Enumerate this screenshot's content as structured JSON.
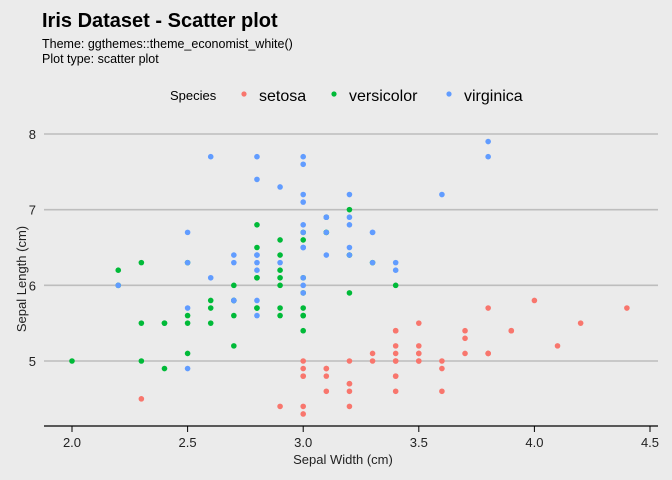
{
  "title": "Iris Dataset - Scatter plot",
  "subtitle_theme": "Theme: ggthemes::theme_economist_white()",
  "subtitle_type": "Plot type: scatter plot",
  "chart_data": {
    "type": "scatter",
    "xlabel": "Sepal Width (cm)",
    "ylabel": "Sepal Length (cm)",
    "xlim": [
      1.9,
      4.5
    ],
    "ylim": [
      4.2,
      8.1
    ],
    "x_ticks": [
      2.0,
      2.5,
      3.0,
      3.5,
      4.0,
      4.5
    ],
    "x_tick_labels": [
      "2.0",
      "2.5",
      "3.0",
      "3.5",
      "4.0",
      "4.5"
    ],
    "y_ticks": [
      5,
      6,
      7,
      8
    ],
    "y_tick_labels": [
      "5",
      "6",
      "7",
      "8"
    ],
    "grid": "horizontal",
    "legend_title": "Species",
    "legend_position": "top",
    "series": [
      {
        "name": "setosa",
        "color": "#F8766D",
        "points": [
          [
            3.5,
            5.1
          ],
          [
            3.0,
            4.9
          ],
          [
            3.2,
            4.7
          ],
          [
            3.1,
            4.6
          ],
          [
            3.6,
            5.0
          ],
          [
            3.9,
            5.4
          ],
          [
            3.4,
            4.6
          ],
          [
            3.4,
            5.0
          ],
          [
            2.9,
            4.4
          ],
          [
            3.1,
            4.9
          ],
          [
            3.7,
            5.4
          ],
          [
            3.4,
            4.8
          ],
          [
            3.0,
            4.8
          ],
          [
            3.0,
            4.3
          ],
          [
            4.0,
            5.8
          ],
          [
            4.4,
            5.7
          ],
          [
            3.9,
            5.4
          ],
          [
            3.5,
            5.1
          ],
          [
            3.8,
            5.7
          ],
          [
            3.8,
            5.1
          ],
          [
            3.4,
            5.4
          ],
          [
            3.7,
            5.1
          ],
          [
            3.6,
            4.6
          ],
          [
            3.3,
            5.1
          ],
          [
            3.4,
            4.8
          ],
          [
            3.0,
            5.0
          ],
          [
            3.4,
            5.0
          ],
          [
            3.5,
            5.2
          ],
          [
            3.4,
            5.2
          ],
          [
            3.2,
            4.7
          ],
          [
            3.1,
            4.8
          ],
          [
            3.4,
            5.4
          ],
          [
            4.1,
            5.2
          ],
          [
            4.2,
            5.5
          ],
          [
            3.1,
            4.9
          ],
          [
            3.2,
            5.0
          ],
          [
            3.5,
            5.5
          ],
          [
            3.6,
            4.9
          ],
          [
            3.0,
            4.4
          ],
          [
            3.4,
            5.1
          ],
          [
            3.5,
            5.0
          ],
          [
            2.3,
            4.5
          ],
          [
            3.2,
            4.4
          ],
          [
            3.5,
            5.0
          ],
          [
            3.8,
            5.1
          ],
          [
            3.0,
            4.8
          ],
          [
            3.8,
            5.1
          ],
          [
            3.2,
            4.6
          ],
          [
            3.7,
            5.3
          ],
          [
            3.3,
            5.0
          ]
        ]
      },
      {
        "name": "versicolor",
        "color": "#00BA38",
        "points": [
          [
            3.2,
            7.0
          ],
          [
            3.2,
            6.4
          ],
          [
            3.1,
            6.9
          ],
          [
            2.3,
            5.5
          ],
          [
            2.8,
            6.5
          ],
          [
            2.8,
            5.7
          ],
          [
            3.3,
            6.3
          ],
          [
            2.4,
            4.9
          ],
          [
            2.9,
            6.6
          ],
          [
            2.7,
            5.2
          ],
          [
            2.0,
            5.0
          ],
          [
            3.0,
            5.9
          ],
          [
            2.2,
            6.0
          ],
          [
            2.9,
            6.1
          ],
          [
            2.9,
            5.6
          ],
          [
            3.1,
            6.7
          ],
          [
            3.0,
            5.6
          ],
          [
            2.7,
            5.8
          ],
          [
            2.2,
            6.2
          ],
          [
            2.5,
            5.6
          ],
          [
            3.2,
            5.9
          ],
          [
            2.8,
            6.1
          ],
          [
            2.5,
            6.3
          ],
          [
            2.8,
            6.1
          ],
          [
            2.9,
            6.4
          ],
          [
            3.0,
            6.6
          ],
          [
            2.8,
            6.8
          ],
          [
            3.0,
            6.7
          ],
          [
            2.9,
            6.0
          ],
          [
            2.6,
            5.7
          ],
          [
            2.4,
            5.5
          ],
          [
            2.4,
            5.5
          ],
          [
            2.7,
            5.8
          ],
          [
            2.7,
            6.0
          ],
          [
            3.0,
            5.4
          ],
          [
            3.4,
            6.0
          ],
          [
            3.1,
            6.7
          ],
          [
            2.3,
            6.3
          ],
          [
            3.0,
            5.6
          ],
          [
            2.5,
            5.5
          ],
          [
            2.6,
            5.5
          ],
          [
            3.0,
            6.1
          ],
          [
            2.6,
            5.8
          ],
          [
            2.3,
            5.0
          ],
          [
            2.7,
            5.6
          ],
          [
            3.0,
            5.7
          ],
          [
            2.9,
            5.7
          ],
          [
            2.9,
            6.2
          ],
          [
            2.5,
            5.1
          ],
          [
            2.8,
            5.7
          ]
        ]
      },
      {
        "name": "virginica",
        "color": "#619CFF",
        "points": [
          [
            3.3,
            6.3
          ],
          [
            2.7,
            5.8
          ],
          [
            3.0,
            7.1
          ],
          [
            2.9,
            6.3
          ],
          [
            3.0,
            6.5
          ],
          [
            3.0,
            7.6
          ],
          [
            2.5,
            4.9
          ],
          [
            2.9,
            7.3
          ],
          [
            2.5,
            6.7
          ],
          [
            3.6,
            7.2
          ],
          [
            3.2,
            6.5
          ],
          [
            2.7,
            6.4
          ],
          [
            3.0,
            6.8
          ],
          [
            2.5,
            5.7
          ],
          [
            2.8,
            5.8
          ],
          [
            3.2,
            6.4
          ],
          [
            3.0,
            6.5
          ],
          [
            3.8,
            7.7
          ],
          [
            2.6,
            7.7
          ],
          [
            2.2,
            6.0
          ],
          [
            3.2,
            6.9
          ],
          [
            2.8,
            5.6
          ],
          [
            2.8,
            7.7
          ],
          [
            2.7,
            6.3
          ],
          [
            3.3,
            6.7
          ],
          [
            3.2,
            7.2
          ],
          [
            2.8,
            6.2
          ],
          [
            3.0,
            6.1
          ],
          [
            2.8,
            6.4
          ],
          [
            3.0,
            7.2
          ],
          [
            2.8,
            7.4
          ],
          [
            3.8,
            7.9
          ],
          [
            2.8,
            6.4
          ],
          [
            2.8,
            6.3
          ],
          [
            2.6,
            6.1
          ],
          [
            3.0,
            7.7
          ],
          [
            3.4,
            6.3
          ],
          [
            3.1,
            6.4
          ],
          [
            3.0,
            6.0
          ],
          [
            3.1,
            6.9
          ],
          [
            3.1,
            6.7
          ],
          [
            3.1,
            6.9
          ],
          [
            2.7,
            5.8
          ],
          [
            3.2,
            6.8
          ],
          [
            3.3,
            6.7
          ],
          [
            3.0,
            6.7
          ],
          [
            2.5,
            6.3
          ],
          [
            3.0,
            6.5
          ],
          [
            3.4,
            6.2
          ],
          [
            3.0,
            5.9
          ]
        ]
      }
    ]
  }
}
